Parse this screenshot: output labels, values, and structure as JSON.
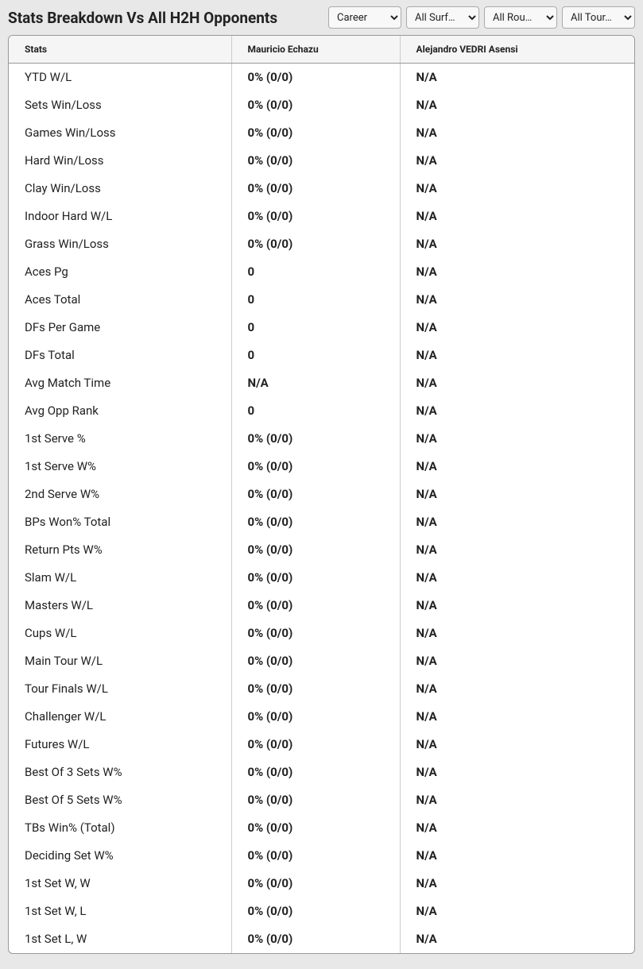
{
  "header": {
    "title": "Stats Breakdown Vs All H2H Opponents"
  },
  "filters": {
    "period": {
      "selected": "Career",
      "options": [
        "Career"
      ]
    },
    "surface": {
      "selected": "All Surf…",
      "options": [
        "All Surf…"
      ]
    },
    "round": {
      "selected": "All Rou…",
      "options": [
        "All Rou…"
      ]
    },
    "tour": {
      "selected": "All Tour…",
      "options": [
        "All Tour…"
      ]
    }
  },
  "table": {
    "columns": [
      "Stats",
      "Mauricio Echazu",
      "Alejandro VEDRI Asensi"
    ],
    "rows": [
      {
        "stat": "YTD W/L",
        "p1": "0% (0/0)",
        "p2": "N/A"
      },
      {
        "stat": "Sets Win/Loss",
        "p1": "0% (0/0)",
        "p2": "N/A"
      },
      {
        "stat": "Games Win/Loss",
        "p1": "0% (0/0)",
        "p2": "N/A"
      },
      {
        "stat": "Hard Win/Loss",
        "p1": "0% (0/0)",
        "p2": "N/A"
      },
      {
        "stat": "Clay Win/Loss",
        "p1": "0% (0/0)",
        "p2": "N/A"
      },
      {
        "stat": "Indoor Hard W/L",
        "p1": "0% (0/0)",
        "p2": "N/A"
      },
      {
        "stat": "Grass Win/Loss",
        "p1": "0% (0/0)",
        "p2": "N/A"
      },
      {
        "stat": "Aces Pg",
        "p1": "0",
        "p2": "N/A"
      },
      {
        "stat": "Aces Total",
        "p1": "0",
        "p2": "N/A"
      },
      {
        "stat": "DFs Per Game",
        "p1": "0",
        "p2": "N/A"
      },
      {
        "stat": "DFs Total",
        "p1": "0",
        "p2": "N/A"
      },
      {
        "stat": "Avg Match Time",
        "p1": "N/A",
        "p2": "N/A"
      },
      {
        "stat": "Avg Opp Rank",
        "p1": "0",
        "p2": "N/A"
      },
      {
        "stat": "1st Serve %",
        "p1": "0% (0/0)",
        "p2": "N/A"
      },
      {
        "stat": "1st Serve W%",
        "p1": "0% (0/0)",
        "p2": "N/A"
      },
      {
        "stat": "2nd Serve W%",
        "p1": "0% (0/0)",
        "p2": "N/A"
      },
      {
        "stat": "BPs Won% Total",
        "p1": "0% (0/0)",
        "p2": "N/A"
      },
      {
        "stat": "Return Pts W%",
        "p1": "0% (0/0)",
        "p2": "N/A"
      },
      {
        "stat": "Slam W/L",
        "p1": "0% (0/0)",
        "p2": "N/A"
      },
      {
        "stat": "Masters W/L",
        "p1": "0% (0/0)",
        "p2": "N/A"
      },
      {
        "stat": "Cups W/L",
        "p1": "0% (0/0)",
        "p2": "N/A"
      },
      {
        "stat": "Main Tour W/L",
        "p1": "0% (0/0)",
        "p2": "N/A"
      },
      {
        "stat": "Tour Finals W/L",
        "p1": "0% (0/0)",
        "p2": "N/A"
      },
      {
        "stat": "Challenger W/L",
        "p1": "0% (0/0)",
        "p2": "N/A"
      },
      {
        "stat": "Futures W/L",
        "p1": "0% (0/0)",
        "p2": "N/A"
      },
      {
        "stat": "Best Of 3 Sets W%",
        "p1": "0% (0/0)",
        "p2": "N/A"
      },
      {
        "stat": "Best Of 5 Sets W%",
        "p1": "0% (0/0)",
        "p2": "N/A"
      },
      {
        "stat": "TBs Win% (Total)",
        "p1": "0% (0/0)",
        "p2": "N/A"
      },
      {
        "stat": "Deciding Set W%",
        "p1": "0% (0/0)",
        "p2": "N/A"
      },
      {
        "stat": "1st Set W, W",
        "p1": "0% (0/0)",
        "p2": "N/A"
      },
      {
        "stat": "1st Set W, L",
        "p1": "0% (0/0)",
        "p2": "N/A"
      },
      {
        "stat": "1st Set L, W",
        "p1": "0% (0/0)",
        "p2": "N/A"
      }
    ]
  }
}
